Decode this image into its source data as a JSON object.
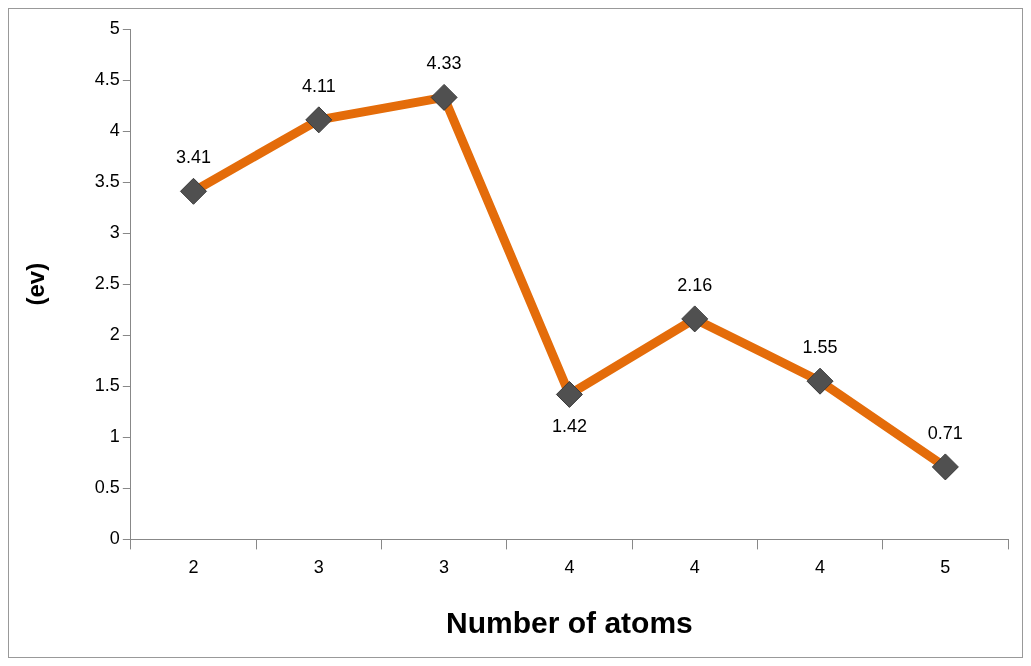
{
  "chart_data": {
    "type": "line",
    "xlabel": "Number of atoms",
    "ylabel": "(ev)",
    "categories": [
      "2",
      "3",
      "3",
      "4",
      "4",
      "4",
      "5"
    ],
    "series": [
      {
        "color": "#e46c0a",
        "values": [
          3.41,
          4.11,
          4.33,
          1.42,
          2.16,
          1.55,
          0.71
        ]
      }
    ],
    "ylim": [
      0,
      5
    ],
    "yticks": [
      0,
      0.5,
      1,
      1.5,
      2,
      2.5,
      3,
      3.5,
      4,
      4.5,
      5
    ],
    "grid": false,
    "legend": false,
    "marker": "diamond",
    "line_style": "solid",
    "data_labels": true
  }
}
